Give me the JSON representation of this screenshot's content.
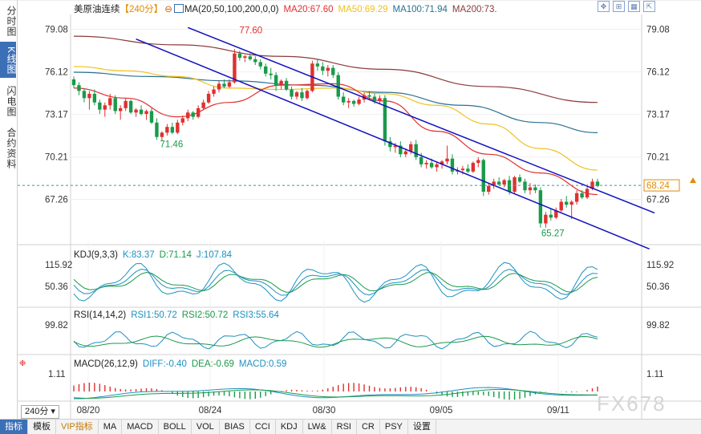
{
  "sidebar": {
    "tabs": [
      {
        "label": "分时图",
        "active": false
      },
      {
        "label": "K线图",
        "active": true
      },
      {
        "label": "闪电图",
        "active": false
      },
      {
        "label": "合约资料",
        "active": false
      }
    ]
  },
  "header": {
    "symbol": "美原油连续",
    "period_tag": "【240分】",
    "period_icon": "⊖",
    "ma_label": "MA(20,50,100,200,0,0)",
    "ma20": "MA20:67.60",
    "ma50": "MA50:69.29",
    "ma100": "MA100:71.94",
    "ma200": "MA200:73."
  },
  "colors": {
    "up": "#e03030",
    "down": "#1a9a4a",
    "ma20": "#e03030",
    "ma50": "#f0c020",
    "ma100": "#2a7090",
    "ma200": "#8b3a3a",
    "channel": "#1010c0",
    "kdj_k": "#1e90c0",
    "kdj_d": "#1a9a4a",
    "kdj_j": "#1e90c0"
  },
  "main_axis": {
    "left_labels": [
      "79.08",
      "76.12",
      "73.17",
      "70.21",
      "67.26"
    ],
    "right_labels": [
      "79.08",
      "76.12",
      "73.17",
      "70.21",
      "67.26"
    ],
    "current_price": "68.24",
    "annotations": {
      "high1": "77.60",
      "low1": "71.46",
      "low2": "65.27"
    }
  },
  "chart_data": {
    "type": "candlestick",
    "title": "美原油连续【240分】",
    "ylim": [
      64.4,
      80.0
    ],
    "x_labels": [
      "08/20",
      "08/24",
      "08/30",
      "09/05",
      "09/11"
    ],
    "candles": [
      [
        75.6,
        75.8,
        75.0,
        75.2
      ],
      [
        75.2,
        75.4,
        74.5,
        74.8
      ],
      [
        74.8,
        75.0,
        74.0,
        74.3
      ],
      [
        74.3,
        74.8,
        73.5,
        74.6
      ],
      [
        74.6,
        74.9,
        73.8,
        74.0
      ],
      [
        74.0,
        74.2,
        73.2,
        73.5
      ],
      [
        73.5,
        74.0,
        73.0,
        73.8
      ],
      [
        73.8,
        74.6,
        73.5,
        74.3
      ],
      [
        74.3,
        74.5,
        73.2,
        73.4
      ],
      [
        73.4,
        73.8,
        72.8,
        73.6
      ],
      [
        73.6,
        74.3,
        73.4,
        74.1
      ],
      [
        74.1,
        74.2,
        73.2,
        73.3
      ],
      [
        73.3,
        73.6,
        73.0,
        73.5
      ],
      [
        73.5,
        73.8,
        73.1,
        73.2
      ],
      [
        73.2,
        73.5,
        72.8,
        73.4
      ],
      [
        73.4,
        73.6,
        72.5,
        72.6
      ],
      [
        72.6,
        72.9,
        71.4,
        71.6
      ],
      [
        71.6,
        72.0,
        71.3,
        71.9
      ],
      [
        71.9,
        72.5,
        71.7,
        72.3
      ],
      [
        72.3,
        72.6,
        71.8,
        71.9
      ],
      [
        71.9,
        72.8,
        71.8,
        72.6
      ],
      [
        72.6,
        73.1,
        72.4,
        72.9
      ],
      [
        72.9,
        73.5,
        72.7,
        73.3
      ],
      [
        73.3,
        73.4,
        72.8,
        73.0
      ],
      [
        73.0,
        73.8,
        72.9,
        73.6
      ],
      [
        73.6,
        74.2,
        73.5,
        74.0
      ],
      [
        74.0,
        74.8,
        73.9,
        74.6
      ],
      [
        74.6,
        75.1,
        74.4,
        74.9
      ],
      [
        74.9,
        75.5,
        74.7,
        75.3
      ],
      [
        75.3,
        75.6,
        75.0,
        75.1
      ],
      [
        75.1,
        75.6,
        75.0,
        75.4
      ],
      [
        75.4,
        77.7,
        75.3,
        77.4
      ],
      [
        77.4,
        77.6,
        76.9,
        77.1
      ],
      [
        77.1,
        77.3,
        76.8,
        77.2
      ],
      [
        77.2,
        77.4,
        76.9,
        77.0
      ],
      [
        77.0,
        77.2,
        76.6,
        76.8
      ],
      [
        76.8,
        77.0,
        76.3,
        76.5
      ],
      [
        76.5,
        76.7,
        75.8,
        76.0
      ],
      [
        76.0,
        76.4,
        75.6,
        75.9
      ],
      [
        75.9,
        76.1,
        74.8,
        75.2
      ],
      [
        75.2,
        75.6,
        74.9,
        75.5
      ],
      [
        75.5,
        75.7,
        74.8,
        74.9
      ],
      [
        74.9,
        75.1,
        74.2,
        74.4
      ],
      [
        74.4,
        74.8,
        74.2,
        74.7
      ],
      [
        74.7,
        75.0,
        74.1,
        74.3
      ],
      [
        74.3,
        74.9,
        74.2,
        74.8
      ],
      [
        74.8,
        76.9,
        74.7,
        76.7
      ],
      [
        76.7,
        77.0,
        76.2,
        76.5
      ],
      [
        76.5,
        76.8,
        75.9,
        76.2
      ],
      [
        76.2,
        76.6,
        75.8,
        76.4
      ],
      [
        76.4,
        76.6,
        75.7,
        75.9
      ],
      [
        75.9,
        76.1,
        74.2,
        74.4
      ],
      [
        74.4,
        74.7,
        73.8,
        74.0
      ],
      [
        74.0,
        74.3,
        73.6,
        74.1
      ],
      [
        74.1,
        74.2,
        73.7,
        73.9
      ],
      [
        73.9,
        74.4,
        73.8,
        74.2
      ],
      [
        74.2,
        74.7,
        74.0,
        74.5
      ],
      [
        74.5,
        74.8,
        74.2,
        74.4
      ],
      [
        74.4,
        74.6,
        73.9,
        74.1
      ],
      [
        74.1,
        74.5,
        73.9,
        74.3
      ],
      [
        74.3,
        74.5,
        71.0,
        71.3
      ],
      [
        71.3,
        71.6,
        70.6,
        70.9
      ],
      [
        70.9,
        71.2,
        70.5,
        71.0
      ],
      [
        71.0,
        71.3,
        70.2,
        70.4
      ],
      [
        70.4,
        70.8,
        70.2,
        70.6
      ],
      [
        70.6,
        71.3,
        70.4,
        71.1
      ],
      [
        71.1,
        71.4,
        70.0,
        70.2
      ],
      [
        70.2,
        70.5,
        69.5,
        69.7
      ],
      [
        69.7,
        70.0,
        69.4,
        69.8
      ],
      [
        69.8,
        70.1,
        69.4,
        69.5
      ],
      [
        69.5,
        69.9,
        69.2,
        69.7
      ],
      [
        69.7,
        70.0,
        69.4,
        69.9
      ],
      [
        69.9,
        71.0,
        69.7,
        70.1
      ],
      [
        70.1,
        70.4,
        69.0,
        69.2
      ],
      [
        69.2,
        69.5,
        69.0,
        69.3
      ],
      [
        69.3,
        69.6,
        69.0,
        69.4
      ],
      [
        69.4,
        69.7,
        69.1,
        69.2
      ],
      [
        69.2,
        69.9,
        69.1,
        69.8
      ],
      [
        69.8,
        70.2,
        69.5,
        70.0
      ],
      [
        70.0,
        70.1,
        67.5,
        67.8
      ],
      [
        67.8,
        68.4,
        67.6,
        68.2
      ],
      [
        68.2,
        68.7,
        68.0,
        68.5
      ],
      [
        68.5,
        68.8,
        68.2,
        68.3
      ],
      [
        68.3,
        68.7,
        68.1,
        68.6
      ],
      [
        68.6,
        68.9,
        67.6,
        67.8
      ],
      [
        67.8,
        68.9,
        67.7,
        68.8
      ],
      [
        68.8,
        69.0,
        68.4,
        68.5
      ],
      [
        68.5,
        68.7,
        67.7,
        67.9
      ],
      [
        67.9,
        68.4,
        67.6,
        68.1
      ],
      [
        68.1,
        68.3,
        67.7,
        67.9
      ],
      [
        67.9,
        68.1,
        65.3,
        65.6
      ],
      [
        65.6,
        66.4,
        65.3,
        66.2
      ],
      [
        66.2,
        66.6,
        65.8,
        66.0
      ],
      [
        66.0,
        66.7,
        65.9,
        66.5
      ],
      [
        66.5,
        67.3,
        66.4,
        67.1
      ],
      [
        67.1,
        67.5,
        66.7,
        66.9
      ],
      [
        66.9,
        67.2,
        65.9,
        67.1
      ],
      [
        67.1,
        67.9,
        66.9,
        67.7
      ],
      [
        67.7,
        67.9,
        67.3,
        67.4
      ],
      [
        67.4,
        68.3,
        67.3,
        68.0
      ],
      [
        68.0,
        68.7,
        67.9,
        68.5
      ],
      [
        68.5,
        68.7,
        68.1,
        68.2
      ]
    ],
    "ma20": [
      [
        0,
        75.0
      ],
      [
        10,
        74.3
      ],
      [
        20,
        73.0
      ],
      [
        30,
        74.0
      ],
      [
        40,
        75.2
      ],
      [
        50,
        75.3
      ],
      [
        60,
        74.1
      ],
      [
        70,
        72.0
      ],
      [
        80,
        70.4
      ],
      [
        90,
        69.1
      ],
      [
        101,
        67.6
      ]
    ],
    "ma50": [
      [
        0,
        76.5
      ],
      [
        10,
        76.2
      ],
      [
        20,
        75.8
      ],
      [
        30,
        75.0
      ],
      [
        40,
        74.9
      ],
      [
        50,
        75.0
      ],
      [
        60,
        74.6
      ],
      [
        70,
        73.8
      ],
      [
        80,
        72.5
      ],
      [
        90,
        70.8
      ],
      [
        101,
        69.3
      ]
    ],
    "ma100": [
      [
        0,
        76.1
      ],
      [
        15,
        75.8
      ],
      [
        30,
        75.5
      ],
      [
        45,
        75.2
      ],
      [
        60,
        74.7
      ],
      [
        75,
        73.8
      ],
      [
        90,
        72.6
      ],
      [
        101,
        71.9
      ]
    ],
    "ma200": [
      [
        0,
        78.6
      ],
      [
        20,
        78.0
      ],
      [
        40,
        77.2
      ],
      [
        60,
        76.3
      ],
      [
        80,
        75.1
      ],
      [
        101,
        74.0
      ]
    ],
    "channel_upper": [
      [
        22,
        79.2
      ],
      [
        101,
        67.9
      ]
    ],
    "channel_lower": [
      [
        12,
        78.4
      ],
      [
        101,
        65.3
      ]
    ],
    "channel_ext_start": [
      [
        88,
        69.8
      ]
    ]
  },
  "kdj": {
    "label": "KDJ(9,3,3)",
    "k": "K:83.37",
    "d": "D:71.14",
    "j": "J:107.84",
    "axis_top": "115.92",
    "axis_mid": "50.36"
  },
  "rsi": {
    "label": "RSI(14,14,2)",
    "rsi1": "RSI1:50.72",
    "rsi2": "RSI2:50.72",
    "rsi3": "RSI3:55.64",
    "axis_top": "99.82"
  },
  "macd": {
    "label": "MACD(26,12,9)",
    "diff": "DIFF:-0.40",
    "dea": "DEA:-0.69",
    "macd": "MACD:0.59",
    "axis_top": "1.11"
  },
  "bottom": {
    "period": "240分",
    "buttons": [
      "指标",
      "模板",
      "VIP指标",
      "MA",
      "MACD",
      "BOLL",
      "VOL",
      "BIAS",
      "CCI",
      "KDJ",
      "LW&",
      "RSI",
      "CR",
      "PSY",
      "设置"
    ]
  },
  "watermark": "FX678"
}
